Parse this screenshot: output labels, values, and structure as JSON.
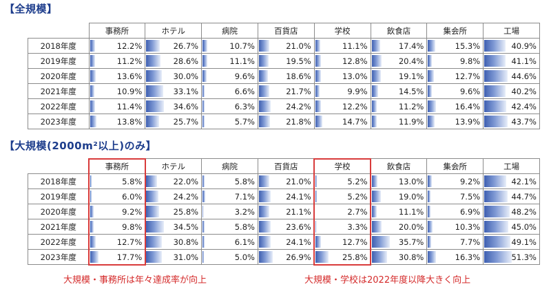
{
  "chart_data": [
    {
      "type": "table",
      "title": "【全規模】",
      "columns": [
        "事務所",
        "ホテル",
        "病院",
        "百貨店",
        "学校",
        "飲食店",
        "集会所",
        "工場"
      ],
      "rows": [
        {
          "label": "2018年度",
          "values": [
            12.2,
            26.7,
            10.7,
            21.0,
            11.1,
            17.4,
            15.3,
            40.9
          ]
        },
        {
          "label": "2019年度",
          "values": [
            11.2,
            28.6,
            11.1,
            19.5,
            12.8,
            20.4,
            9.8,
            41.1
          ]
        },
        {
          "label": "2020年度",
          "values": [
            13.6,
            30.0,
            9.6,
            18.6,
            13.0,
            19.1,
            12.7,
            44.6
          ]
        },
        {
          "label": "2021年度",
          "values": [
            10.9,
            33.1,
            6.6,
            21.7,
            9.9,
            14.5,
            9.6,
            40.2
          ]
        },
        {
          "label": "2022年度",
          "values": [
            11.4,
            34.6,
            6.3,
            24.2,
            12.2,
            11.2,
            16.4,
            42.4
          ]
        },
        {
          "label": "2023年度",
          "values": [
            13.8,
            25.7,
            5.7,
            21.8,
            14.7,
            11.9,
            13.9,
            43.7
          ]
        }
      ]
    },
    {
      "type": "table",
      "title": "【大規模(2000m²以上)のみ】",
      "columns": [
        "事務所",
        "ホテル",
        "病院",
        "百貨店",
        "学校",
        "飲食店",
        "集会所",
        "工場"
      ],
      "rows": [
        {
          "label": "2018年度",
          "values": [
            5.8,
            22.0,
            5.8,
            21.0,
            5.2,
            13.0,
            9.2,
            42.1
          ]
        },
        {
          "label": "2019年度",
          "values": [
            6.0,
            24.2,
            7.1,
            24.1,
            5.2,
            19.0,
            7.5,
            44.7
          ]
        },
        {
          "label": "2020年度",
          "values": [
            9.2,
            25.8,
            3.2,
            21.1,
            2.7,
            11.1,
            6.9,
            48.2
          ]
        },
        {
          "label": "2021年度",
          "values": [
            9.8,
            34.5,
            5.8,
            23.6,
            3.3,
            20.0,
            10.3,
            45.0
          ]
        },
        {
          "label": "2022年度",
          "values": [
            12.7,
            30.8,
            6.1,
            24.1,
            12.7,
            35.7,
            7.7,
            49.1
          ]
        },
        {
          "label": "2023年度",
          "values": [
            17.7,
            31.0,
            5.0,
            26.9,
            25.8,
            30.8,
            16.3,
            51.3
          ]
        }
      ],
      "highlighted_columns": [
        "事務所",
        "学校"
      ],
      "annotations": [
        "大規模・事務所は年々達成率が向上",
        "大規模・学校は2022年度以降大きく向上"
      ]
    }
  ],
  "style": {
    "bar_color": "#3e5fb0",
    "highlight_color": "#d83a3a",
    "title_color": "#1d3d8c"
  },
  "value_max": 100
}
